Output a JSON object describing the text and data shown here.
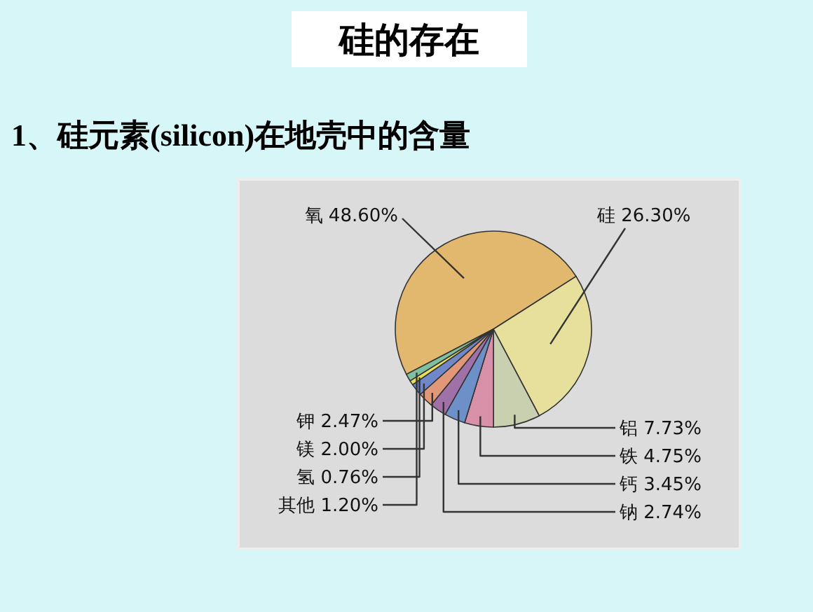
{
  "chart_data": {
    "type": "pie",
    "title": "硅的存在",
    "subtitle": "1、硅元素(silicon)在地壳中的含量",
    "categories": [
      "氧",
      "硅",
      "铝",
      "铁",
      "钙",
      "钠",
      "钾",
      "镁",
      "氢",
      "其他"
    ],
    "values": [
      48.6,
      26.3,
      7.73,
      4.75,
      3.45,
      2.74,
      2.47,
      2.0,
      0.76,
      1.2
    ],
    "value_labels": [
      "48.60%",
      "26.30%",
      "7.73%",
      "4.75%",
      "3.45%",
      "2.74%",
      "2.47%",
      "2.00%",
      "0.76%",
      "1.20%"
    ],
    "colors": [
      "#e2b86e",
      "#e6e09c",
      "#c8d0b0",
      "#d890a8",
      "#6e90c8",
      "#a070a8",
      "#e09878",
      "#7088c8",
      "#e8e060",
      "#80c0a0"
    ]
  }
}
